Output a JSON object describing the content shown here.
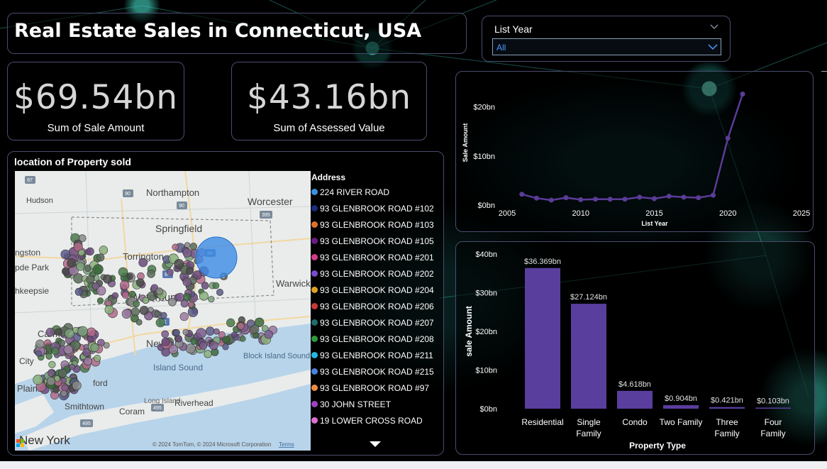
{
  "colors": {
    "accent": "#5a3e9e",
    "line": "#5b3c98",
    "card_border": "#4a4d6e",
    "slicer_value": "#4a9cff"
  },
  "header": {
    "title": "Real Estate Sales in Connecticut, USA"
  },
  "slicer": {
    "label": "List Year",
    "value": "All",
    "icon": "chevron-down-icon"
  },
  "kpis": [
    {
      "value": "$69.54bn",
      "label": "Sum of Sale Amount"
    },
    {
      "value": "$43.16bn",
      "label": "Sum of Assessed Value"
    }
  ],
  "map": {
    "title": "location of Property sold",
    "places": [
      "Northampton",
      "Worcester",
      "Hudson",
      "Springfield",
      "Torrington",
      "Waterbury",
      "Warwick",
      "Carmel",
      "New",
      "Block Island Sound",
      "Island Sound",
      "New York",
      "Smithtown",
      "Coram",
      "Riverhead",
      "Long Island",
      "Plains",
      "City",
      "ford",
      "pde Park",
      "ngston",
      "hkeepsie"
    ],
    "road_shields": [
      "87",
      "90",
      "90",
      "395",
      "84",
      "84",
      "6",
      "91",
      "495",
      "495"
    ],
    "attribution": "© 2024 TomTom, © 2024 Microsoft Corporation",
    "terms": "Terms",
    "legend_title": "Address",
    "legend": [
      {
        "label": "224 RIVER ROAD",
        "color": "#3a8fe0"
      },
      {
        "label": "93 GLENBROOK ROAD #102",
        "color": "#1a2b80"
      },
      {
        "label": "93 GLENBROOK ROAD #103",
        "color": "#e0702a"
      },
      {
        "label": "93 GLENBROOK ROAD #105",
        "color": "#6b1a8a"
      },
      {
        "label": "93 GLENBROOK ROAD #201",
        "color": "#d63a8c"
      },
      {
        "label": "93 GLENBROOK ROAD #202",
        "color": "#7a4ad0"
      },
      {
        "label": "93 GLENBROOK ROAD #204",
        "color": "#e0a020"
      },
      {
        "label": "93 GLENBROOK ROAD #206",
        "color": "#c83838"
      },
      {
        "label": "93 GLENBROOK ROAD #207",
        "color": "#1f6e6a"
      },
      {
        "label": "93 GLENBROOK ROAD #208",
        "color": "#2e9a3c"
      },
      {
        "label": "93 GLENBROOK ROAD #211",
        "color": "#22b8e0"
      },
      {
        "label": "93 GLENBROOK ROAD #215",
        "color": "#4a80e0"
      },
      {
        "label": "93 GLENBROOK ROAD #97",
        "color": "#f08a40"
      },
      {
        "label": "30 JOHN STREET",
        "color": "#a040c0"
      },
      {
        "label": "19 LOWER CROSS ROAD",
        "color": "#e070d0"
      }
    ]
  },
  "chart_data": [
    {
      "type": "line",
      "title": "",
      "xlabel": "List Year",
      "ylabel": "Sale Amount",
      "x": [
        2006,
        2007,
        2008,
        2009,
        2010,
        2011,
        2012,
        2013,
        2014,
        2015,
        2016,
        2017,
        2018,
        2019,
        2020,
        2021
      ],
      "values": [
        2.2,
        1.4,
        1.0,
        1.5,
        1.1,
        1.2,
        1.2,
        1.2,
        1.6,
        1.3,
        1.8,
        1.6,
        1.5,
        2.0,
        13.6,
        22.6
      ],
      "xlim": [
        2005,
        2025
      ],
      "ylim": [
        0,
        25
      ],
      "xticks": [
        "2005",
        "2010",
        "2015",
        "2020",
        "2025"
      ],
      "yticks": [
        "$0bn",
        "$10bn",
        "$20bn"
      ],
      "ytick_values": [
        0,
        10,
        20
      ]
    },
    {
      "type": "bar",
      "title": "",
      "xlabel": "Property Type",
      "ylabel": "sale Amount",
      "categories": [
        "Residential",
        "Single Family",
        "Condo",
        "Two Family",
        "Three Family",
        "Four Family"
      ],
      "category_lines": [
        [
          "Residential"
        ],
        [
          "Single",
          "Family"
        ],
        [
          "Condo"
        ],
        [
          "Two Family"
        ],
        [
          "Three",
          "Family"
        ],
        [
          "Four",
          "Family"
        ]
      ],
      "values": [
        36.369,
        27.124,
        4.618,
        0.904,
        0.421,
        0.103
      ],
      "data_labels": [
        "$36.369bn",
        "$27.124bn",
        "$4.618bn",
        "$0.904bn",
        "$0.421bn",
        "$0.103bn"
      ],
      "ylim": [
        0,
        40
      ],
      "yticks": [
        "$0bn",
        "$10bn",
        "$20bn",
        "$30bn",
        "$40bn"
      ],
      "ytick_values": [
        0,
        10,
        20,
        30,
        40
      ]
    }
  ]
}
